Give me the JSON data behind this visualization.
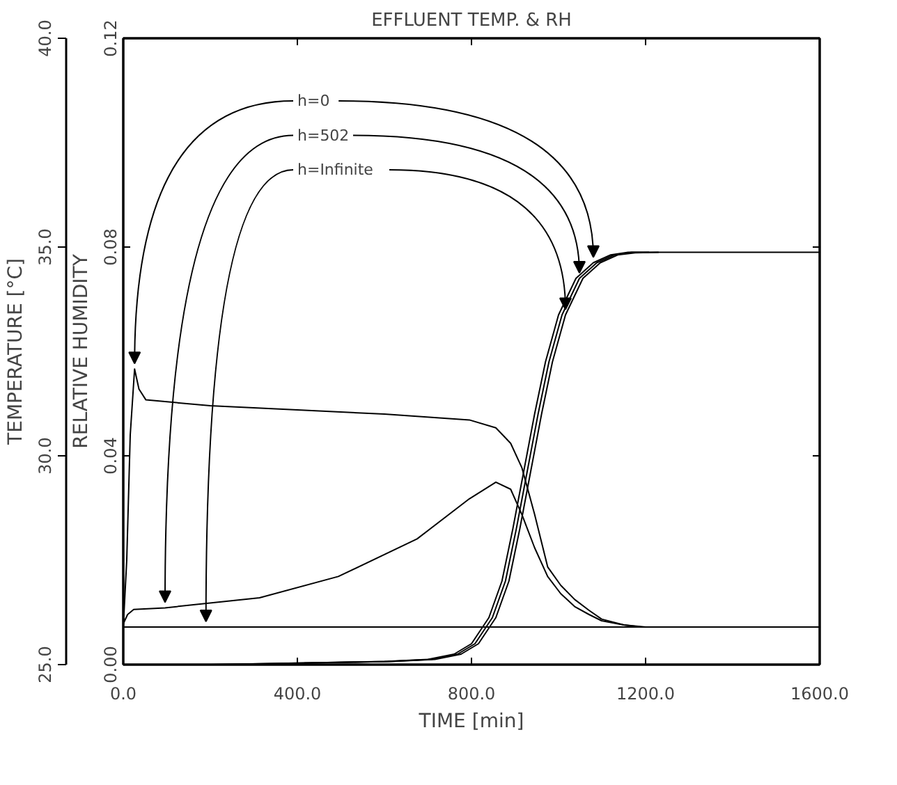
{
  "chart_data": {
    "type": "line",
    "title": "EFFLUENT TEMP. & RH",
    "xlabel": "TIME [min]",
    "ylabel": "RELATIVE HUMIDITY",
    "y2label": "TEMPERATURE [°C]",
    "xlim": [
      0,
      1600
    ],
    "xticks": [
      {
        "value": 0,
        "label": "0.0"
      },
      {
        "value": 400,
        "label": "400.0"
      },
      {
        "value": 800,
        "label": "800.0"
      },
      {
        "value": 1200,
        "label": "1200.0"
      },
      {
        "value": 1600,
        "label": "1600.0"
      }
    ],
    "ylim": [
      0,
      0.12
    ],
    "yticks": [
      {
        "value": 0,
        "label": "0.00"
      },
      {
        "value": 0.04,
        "label": "0.04"
      },
      {
        "value": 0.08,
        "label": "0.08"
      },
      {
        "value": 0.12,
        "label": "0.12"
      }
    ],
    "y2lim": [
      25,
      40
    ],
    "y2ticks": [
      {
        "value": 25,
        "label": "25.0"
      },
      {
        "value": 30,
        "label": "30.0"
      },
      {
        "value": 35,
        "label": "35.0"
      },
      {
        "value": 40,
        "label": "40.0"
      }
    ],
    "grid": false,
    "annotations": [
      {
        "text": "h=0",
        "x": 1080,
        "y": 0.077
      },
      {
        "text": "h=502",
        "x": 1048,
        "y": 0.074
      },
      {
        "text": "h=Infinite",
        "x": 1016,
        "y": 0.067
      }
    ],
    "series": [
      {
        "axis": "y2",
        "color": "#000000",
        "x": [
          0,
          8,
          16,
          26,
          36,
          52,
          200,
          400,
          600,
          795,
          856,
          890,
          916,
          945,
          975,
          1005,
          1037,
          1070,
          1099,
          1150,
          1200
        ],
        "values": [
          25.9,
          27.5,
          30.5,
          32.08,
          31.6,
          31.34,
          31.2,
          31.1,
          31.0,
          30.86,
          30.67,
          30.3,
          29.71,
          28.6,
          27.34,
          26.9,
          26.56,
          26.3,
          26.09,
          25.95,
          25.9
        ]
      },
      {
        "axis": "y2",
        "color": "#000000",
        "x": [
          0,
          10,
          24,
          96,
          313,
          494,
          675,
          795,
          856,
          890,
          916,
          945,
          975,
          1005,
          1037,
          1070,
          1099,
          1150,
          1190
        ],
        "values": [
          25.98,
          26.2,
          26.32,
          26.36,
          26.6,
          27.11,
          28.01,
          28.97,
          29.37,
          29.2,
          28.59,
          27.8,
          27.11,
          26.7,
          26.39,
          26.2,
          26.05,
          25.95,
          25.9
        ]
      },
      {
        "axis": "y2",
        "color": "#000000",
        "x": [
          0,
          60,
          120,
          190,
          600,
          1600
        ],
        "values": [
          25.9,
          25.9,
          25.9,
          25.9,
          25.9,
          25.9
        ]
      },
      {
        "color": "#000000",
        "x": [
          0,
          200,
          400,
          600,
          700,
          760,
          800,
          840,
          870,
          895,
          920,
          945,
          970,
          1000,
          1040,
          1080,
          1120,
          1160,
          1200,
          1600
        ],
        "values": [
          0,
          0,
          0.0003,
          0.0006,
          0.001,
          0.002,
          0.004,
          0.009,
          0.016,
          0.026,
          0.037,
          0.048,
          0.058,
          0.067,
          0.074,
          0.077,
          0.0785,
          0.079,
          0.079,
          0.079
        ]
      },
      {
        "color": "#000000",
        "x": [
          208,
          408,
          608,
          708,
          768,
          808,
          848,
          878,
          903,
          928,
          953,
          978,
          1008,
          1048,
          1088,
          1128,
          1168,
          1208
        ],
        "values": [
          0,
          0.0003,
          0.0006,
          0.001,
          0.002,
          0.004,
          0.009,
          0.016,
          0.026,
          0.037,
          0.048,
          0.058,
          0.067,
          0.074,
          0.077,
          0.0785,
          0.079,
          0.079
        ]
      },
      {
        "color": "#000000",
        "x": [
          416,
          616,
          716,
          776,
          816,
          856,
          886,
          911,
          936,
          961,
          986,
          1016,
          1056,
          1096,
          1136,
          1176,
          1230
        ],
        "values": [
          0.0003,
          0.0006,
          0.001,
          0.002,
          0.004,
          0.009,
          0.016,
          0.026,
          0.037,
          0.048,
          0.058,
          0.067,
          0.074,
          0.077,
          0.0785,
          0.0789,
          0.079
        ]
      }
    ]
  }
}
